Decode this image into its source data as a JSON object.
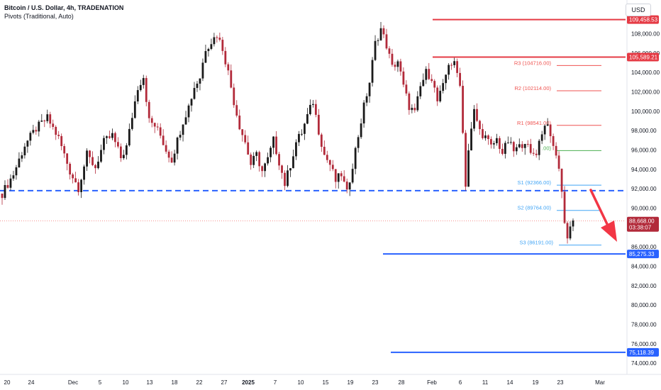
{
  "header": {
    "title": "Bitcoin / U.S. Dollar, 4h, TRADENATION",
    "indicator": "Pivots (Traditional, Auto)",
    "currency": "USD"
  },
  "colors": {
    "up_candle": "#1a1a1a",
    "down_candle": "#b22a3a",
    "resistance": "#e53b45",
    "support": "#2962ff",
    "pivot_red": "#ef5350",
    "pivot_blue": "#42a5f5",
    "pivot_green": "#4caf50",
    "arrow": "#f23645",
    "grid_text": "#131722"
  },
  "chart_data": {
    "type": "candlestick",
    "y_axis": {
      "min": 73500,
      "max": 111000,
      "ticks": [
        "74,000.00",
        "76,000.00",
        "78,000.00",
        "80,000.00",
        "82,000.00",
        "84,000.00",
        "86,000.00",
        "88,000.00",
        "90,000.00",
        "92,000.00",
        "94,000.00",
        "96,000.00",
        "98,000.00",
        "100,000.00",
        "102,000.00",
        "104,000.00",
        "106,000.00",
        "108,000.00"
      ]
    },
    "x_axis": {
      "labels": [
        "20",
        "24",
        "Dec",
        "5",
        "10",
        "13",
        "18",
        "22",
        "27",
        "2025",
        "7",
        "10",
        "15",
        "19",
        "23",
        "28",
        "Feb",
        "6",
        "11",
        "14",
        "19",
        "23",
        "Mar"
      ]
    },
    "price_path": [
      [
        0,
        91500
      ],
      [
        4,
        93500
      ],
      [
        8,
        96500
      ],
      [
        12,
        98200
      ],
      [
        16,
        99300
      ],
      [
        20,
        97200
      ],
      [
        24,
        93800
      ],
      [
        27,
        92100
      ],
      [
        30,
        95500
      ],
      [
        33,
        94200
      ],
      [
        36,
        96800
      ],
      [
        39,
        97500
      ],
      [
        42,
        95200
      ],
      [
        44,
        96300
      ],
      [
        46,
        99500
      ],
      [
        48,
        102500
      ],
      [
        50,
        103600
      ],
      [
        52,
        99000
      ],
      [
        54,
        98500
      ],
      [
        56,
        97500
      ],
      [
        58,
        96000
      ],
      [
        60,
        95000
      ],
      [
        62,
        97000
      ],
      [
        64,
        99000
      ],
      [
        66,
        100500
      ],
      [
        68,
        102500
      ],
      [
        70,
        103500
      ],
      [
        72,
        106500
      ],
      [
        74,
        107200
      ],
      [
        76,
        107900
      ],
      [
        78,
        106500
      ],
      [
        80,
        104000
      ],
      [
        82,
        101000
      ],
      [
        84,
        98500
      ],
      [
        86,
        96800
      ],
      [
        88,
        94500
      ],
      [
        90,
        95500
      ],
      [
        92,
        93800
      ],
      [
        94,
        95000
      ],
      [
        96,
        97000
      ],
      [
        98,
        94800
      ],
      [
        100,
        92500
      ],
      [
        102,
        94500
      ],
      [
        104,
        96800
      ],
      [
        106,
        97800
      ],
      [
        108,
        99500
      ],
      [
        110,
        101000
      ],
      [
        112,
        98000
      ],
      [
        114,
        95500
      ],
      [
        116,
        94500
      ],
      [
        118,
        92800
      ],
      [
        120,
        93500
      ],
      [
        122,
        91500
      ],
      [
        124,
        94500
      ],
      [
        126,
        97500
      ],
      [
        128,
        100500
      ],
      [
        130,
        103000
      ],
      [
        132,
        107000
      ],
      [
        134,
        108500
      ],
      [
        136,
        106800
      ],
      [
        138,
        104500
      ],
      [
        140,
        105200
      ],
      [
        142,
        102500
      ],
      [
        144,
        100500
      ],
      [
        146,
        99800
      ],
      [
        148,
        102500
      ],
      [
        150,
        104000
      ],
      [
        152,
        103500
      ],
      [
        154,
        101000
      ],
      [
        156,
        102500
      ],
      [
        158,
        105000
      ],
      [
        160,
        104800
      ],
      [
        162,
        103000
      ],
      [
        164,
        92500
      ],
      [
        165,
        96000
      ],
      [
        167,
        100000
      ],
      [
        169,
        98000
      ],
      [
        171,
        97300
      ],
      [
        173,
        96300
      ],
      [
        175,
        97100
      ],
      [
        177,
        95700
      ],
      [
        179,
        96900
      ],
      [
        181,
        95900
      ],
      [
        183,
        96300
      ],
      [
        185,
        97000
      ],
      [
        187,
        95500
      ],
      [
        189,
        95800
      ],
      [
        191,
        97900
      ],
      [
        193,
        99000
      ],
      [
        194,
        97000
      ],
      [
        196,
        95600
      ],
      [
        198,
        92000
      ],
      [
        199,
        88500
      ],
      [
        200,
        86800
      ],
      [
        201,
        88400
      ],
      [
        202,
        88700
      ]
    ],
    "candle_count": 203,
    "last_price": "88,668.00",
    "countdown": "03:38:07",
    "resistance_levels": [
      {
        "value": 109458.53,
        "label": "109,458.53"
      },
      {
        "value": 105589.21,
        "label": "105,589.21"
      }
    ],
    "support_levels": [
      {
        "value": 85275.33,
        "label": "85,275.33"
      },
      {
        "value": 75118.39,
        "label": "75,118.39"
      }
    ],
    "dashed_support": {
      "value": 91800
    },
    "pivots": [
      {
        "name": "R3",
        "label": "R3 (104716.00)",
        "value": 104716
      },
      {
        "name": "R2",
        "label": "R2 (102114.00)",
        "value": 102114
      },
      {
        "name": "R1",
        "label": "R1 (98541.00)",
        "value": 98541
      },
      {
        "name": "P",
        "label": ".00)",
        "value": 95939
      },
      {
        "name": "S1",
        "label": "S1 (92366.00)",
        "value": 92366
      },
      {
        "name": "S2",
        "label": "S2 (89764.00)",
        "value": 89764
      },
      {
        "name": "S3",
        "label": "S3 (86191.00)",
        "value": 86191
      }
    ]
  }
}
